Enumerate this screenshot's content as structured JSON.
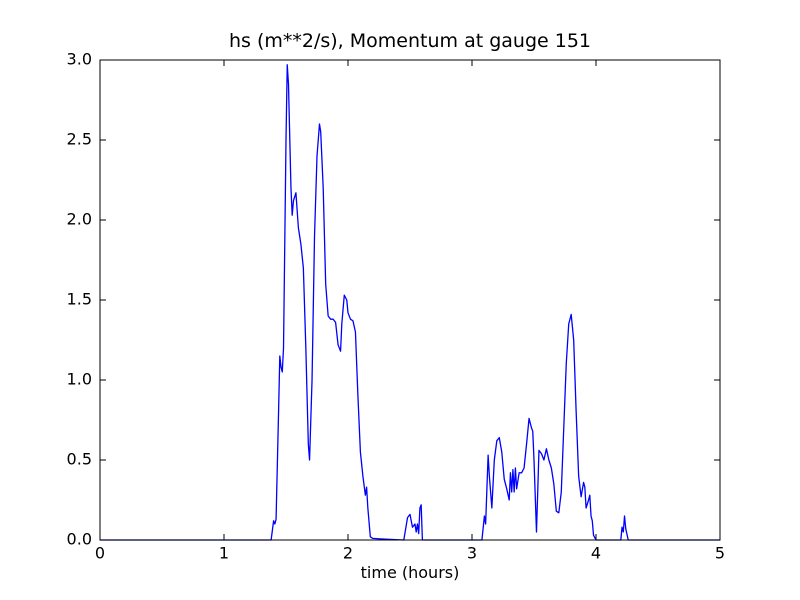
{
  "chart_data": {
    "type": "line",
    "title": "hs (m**2/s), Momentum at gauge 151",
    "x_label": "time (hours)",
    "xlim": [
      0,
      5
    ],
    "ylim": [
      0,
      3.0
    ],
    "xticks": [
      0,
      1,
      2,
      3,
      4,
      5
    ],
    "yticks": [
      {
        "value": 0,
        "label": "0.0"
      },
      0.5,
      {
        "value": 1,
        "label": "1.0"
      },
      1.5,
      {
        "value": 2,
        "label": "2.0"
      },
      2.5,
      {
        "value": 3,
        "label": "3.0"
      }
    ],
    "hline": {
      "value": 0,
      "color": "#000000",
      "style": "dashed"
    },
    "series": [
      {
        "name": "hs",
        "color": "#0000ff",
        "x": [
          0,
          1.38,
          1.4,
          1.41,
          1.42,
          1.44,
          1.45,
          1.46,
          1.47,
          1.48,
          1.5,
          1.51,
          1.52,
          1.54,
          1.55,
          1.56,
          1.58,
          1.6,
          1.62,
          1.64,
          1.66,
          1.68,
          1.69,
          1.71,
          1.73,
          1.75,
          1.77,
          1.78,
          1.8,
          1.82,
          1.84,
          1.86,
          1.88,
          1.9,
          1.92,
          1.94,
          1.95,
          1.97,
          1.99,
          2.0,
          2.02,
          2.04,
          2.06,
          2.08,
          2.1,
          2.12,
          2.14,
          2.15,
          2.16,
          2.18,
          2.2,
          2.3,
          2.45,
          2.48,
          2.5,
          2.52,
          2.54,
          2.55,
          2.56,
          2.57,
          2.58,
          2.59,
          2.6,
          3.08,
          3.1,
          3.11,
          3.13,
          3.14,
          3.16,
          3.18,
          3.2,
          3.22,
          3.24,
          3.26,
          3.28,
          3.3,
          3.31,
          3.32,
          3.33,
          3.34,
          3.35,
          3.36,
          3.38,
          3.4,
          3.42,
          3.44,
          3.46,
          3.48,
          3.49,
          3.5,
          3.52,
          3.53,
          3.54,
          3.56,
          3.58,
          3.6,
          3.62,
          3.64,
          3.66,
          3.68,
          3.7,
          3.72,
          3.74,
          3.76,
          3.78,
          3.8,
          3.82,
          3.84,
          3.86,
          3.88,
          3.9,
          3.91,
          3.92,
          3.94,
          3.95,
          3.96,
          3.97,
          3.98,
          4.0,
          4.2,
          4.21,
          4.22,
          4.23,
          4.24,
          4.26,
          5.0
        ],
        "values": [
          0,
          0,
          0.12,
          0.1,
          0.13,
          0.8,
          1.15,
          1.08,
          1.05,
          1.2,
          2.5,
          2.97,
          2.85,
          2.2,
          2.03,
          2.12,
          2.17,
          1.95,
          1.85,
          1.7,
          1.2,
          0.6,
          0.5,
          1.0,
          1.9,
          2.4,
          2.6,
          2.55,
          2.2,
          1.6,
          1.4,
          1.38,
          1.38,
          1.36,
          1.22,
          1.18,
          1.35,
          1.53,
          1.5,
          1.42,
          1.38,
          1.37,
          1.3,
          0.9,
          0.55,
          0.4,
          0.28,
          0.33,
          0.2,
          0.02,
          0.01,
          0.005,
          0,
          0.14,
          0.16,
          0.08,
          0.1,
          0.05,
          0.1,
          0.04,
          0.2,
          0.22,
          0,
          0,
          0.15,
          0.1,
          0.53,
          0.4,
          0.2,
          0.5,
          0.62,
          0.64,
          0.55,
          0.38,
          0.32,
          0.25,
          0.42,
          0.3,
          0.44,
          0.3,
          0.45,
          0.32,
          0.42,
          0.42,
          0.45,
          0.6,
          0.76,
          0.7,
          0.68,
          0.5,
          0.05,
          0.3,
          0.56,
          0.54,
          0.5,
          0.57,
          0.5,
          0.45,
          0.35,
          0.18,
          0.17,
          0.3,
          0.7,
          1.1,
          1.35,
          1.41,
          1.25,
          0.8,
          0.4,
          0.27,
          0.36,
          0.33,
          0.2,
          0.25,
          0.28,
          0.15,
          0.12,
          0.03,
          0,
          0,
          0.08,
          0.05,
          0.15,
          0.07,
          0,
          0
        ]
      }
    ]
  }
}
